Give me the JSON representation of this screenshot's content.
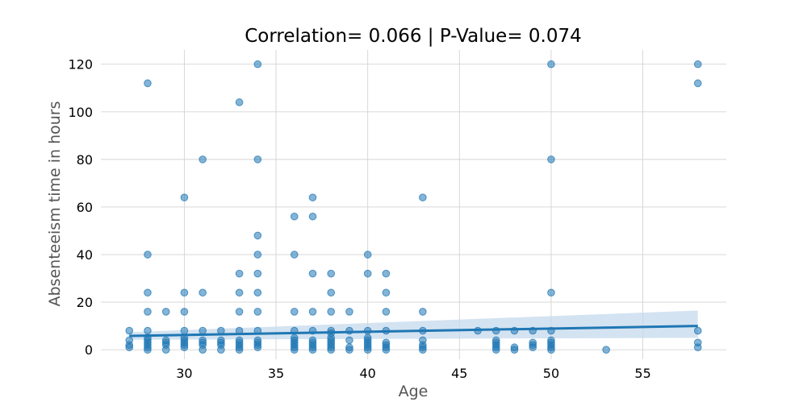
{
  "chart_data": {
    "type": "scatter",
    "title": "Correlation= 0.066 | P-Value= 0.074",
    "xlabel": "Age",
    "ylabel": "Absenteeism time in hours",
    "xlim": [
      25.45,
      59.55
    ],
    "ylim": [
      -4,
      126
    ],
    "x_ticks": [
      30,
      35,
      40,
      45,
      50,
      55
    ],
    "y_ticks": [
      0,
      20,
      40,
      60,
      80,
      100,
      120
    ],
    "grid": true,
    "colors": {
      "points": "#1f77b4",
      "regression_line": "#1f77b4",
      "confidence_band": "#c6d9ec",
      "grid": "#d3d3d3"
    },
    "points": [
      {
        "x": 27,
        "y": 8
      },
      {
        "x": 27,
        "y": 4
      },
      {
        "x": 27,
        "y": 2
      },
      {
        "x": 27,
        "y": 1
      },
      {
        "x": 28,
        "y": 112
      },
      {
        "x": 28,
        "y": 40
      },
      {
        "x": 28,
        "y": 24
      },
      {
        "x": 28,
        "y": 16
      },
      {
        "x": 28,
        "y": 8
      },
      {
        "x": 28,
        "y": 5
      },
      {
        "x": 28,
        "y": 4
      },
      {
        "x": 28,
        "y": 3
      },
      {
        "x": 28,
        "y": 2
      },
      {
        "x": 28,
        "y": 1
      },
      {
        "x": 28,
        "y": 0
      },
      {
        "x": 29,
        "y": 16
      },
      {
        "x": 29,
        "y": 4
      },
      {
        "x": 29,
        "y": 3
      },
      {
        "x": 29,
        "y": 2
      },
      {
        "x": 29,
        "y": 0
      },
      {
        "x": 30,
        "y": 64
      },
      {
        "x": 30,
        "y": 24
      },
      {
        "x": 30,
        "y": 16
      },
      {
        "x": 30,
        "y": 8
      },
      {
        "x": 30,
        "y": 5
      },
      {
        "x": 30,
        "y": 4
      },
      {
        "x": 30,
        "y": 3
      },
      {
        "x": 30,
        "y": 2
      },
      {
        "x": 30,
        "y": 1
      },
      {
        "x": 31,
        "y": 80
      },
      {
        "x": 31,
        "y": 24
      },
      {
        "x": 31,
        "y": 8
      },
      {
        "x": 31,
        "y": 4
      },
      {
        "x": 31,
        "y": 3
      },
      {
        "x": 31,
        "y": 2
      },
      {
        "x": 31,
        "y": 0
      },
      {
        "x": 32,
        "y": 8
      },
      {
        "x": 32,
        "y": 4
      },
      {
        "x": 32,
        "y": 3
      },
      {
        "x": 32,
        "y": 2
      },
      {
        "x": 32,
        "y": 0
      },
      {
        "x": 33,
        "y": 104
      },
      {
        "x": 33,
        "y": 32
      },
      {
        "x": 33,
        "y": 24
      },
      {
        "x": 33,
        "y": 16
      },
      {
        "x": 33,
        "y": 8
      },
      {
        "x": 33,
        "y": 4
      },
      {
        "x": 33,
        "y": 3
      },
      {
        "x": 33,
        "y": 2
      },
      {
        "x": 33,
        "y": 1
      },
      {
        "x": 33,
        "y": 0
      },
      {
        "x": 34,
        "y": 120
      },
      {
        "x": 34,
        "y": 80
      },
      {
        "x": 34,
        "y": 48
      },
      {
        "x": 34,
        "y": 40
      },
      {
        "x": 34,
        "y": 32
      },
      {
        "x": 34,
        "y": 24
      },
      {
        "x": 34,
        "y": 16
      },
      {
        "x": 34,
        "y": 8
      },
      {
        "x": 34,
        "y": 4
      },
      {
        "x": 34,
        "y": 3
      },
      {
        "x": 34,
        "y": 2
      },
      {
        "x": 34,
        "y": 1
      },
      {
        "x": 36,
        "y": 56
      },
      {
        "x": 36,
        "y": 40
      },
      {
        "x": 36,
        "y": 16
      },
      {
        "x": 36,
        "y": 8
      },
      {
        "x": 36,
        "y": 5
      },
      {
        "x": 36,
        "y": 4
      },
      {
        "x": 36,
        "y": 3
      },
      {
        "x": 36,
        "y": 2
      },
      {
        "x": 36,
        "y": 1
      },
      {
        "x": 36,
        "y": 0
      },
      {
        "x": 37,
        "y": 64
      },
      {
        "x": 37,
        "y": 56
      },
      {
        "x": 37,
        "y": 32
      },
      {
        "x": 37,
        "y": 16
      },
      {
        "x": 37,
        "y": 8
      },
      {
        "x": 37,
        "y": 4
      },
      {
        "x": 37,
        "y": 3
      },
      {
        "x": 37,
        "y": 2
      },
      {
        "x": 37,
        "y": 1
      },
      {
        "x": 37,
        "y": 0
      },
      {
        "x": 38,
        "y": 32
      },
      {
        "x": 38,
        "y": 24
      },
      {
        "x": 38,
        "y": 16
      },
      {
        "x": 38,
        "y": 8
      },
      {
        "x": 38,
        "y": 7
      },
      {
        "x": 38,
        "y": 5
      },
      {
        "x": 38,
        "y": 4
      },
      {
        "x": 38,
        "y": 3
      },
      {
        "x": 38,
        "y": 2
      },
      {
        "x": 38,
        "y": 1
      },
      {
        "x": 38,
        "y": 0
      },
      {
        "x": 39,
        "y": 16
      },
      {
        "x": 39,
        "y": 8
      },
      {
        "x": 39,
        "y": 4
      },
      {
        "x": 39,
        "y": 1
      },
      {
        "x": 39,
        "y": 0
      },
      {
        "x": 40,
        "y": 40
      },
      {
        "x": 40,
        "y": 32
      },
      {
        "x": 40,
        "y": 8
      },
      {
        "x": 40,
        "y": 5
      },
      {
        "x": 40,
        "y": 4
      },
      {
        "x": 40,
        "y": 3
      },
      {
        "x": 40,
        "y": 2
      },
      {
        "x": 40,
        "y": 1
      },
      {
        "x": 40,
        "y": 0
      },
      {
        "x": 41,
        "y": 32
      },
      {
        "x": 41,
        "y": 24
      },
      {
        "x": 41,
        "y": 16
      },
      {
        "x": 41,
        "y": 8
      },
      {
        "x": 41,
        "y": 3
      },
      {
        "x": 41,
        "y": 2
      },
      {
        "x": 41,
        "y": 1
      },
      {
        "x": 41,
        "y": 0
      },
      {
        "x": 43,
        "y": 64
      },
      {
        "x": 43,
        "y": 16
      },
      {
        "x": 43,
        "y": 8
      },
      {
        "x": 43,
        "y": 4
      },
      {
        "x": 43,
        "y": 2
      },
      {
        "x": 43,
        "y": 1
      },
      {
        "x": 43,
        "y": 0
      },
      {
        "x": 46,
        "y": 8
      },
      {
        "x": 47,
        "y": 8
      },
      {
        "x": 47,
        "y": 4
      },
      {
        "x": 47,
        "y": 3
      },
      {
        "x": 47,
        "y": 2
      },
      {
        "x": 47,
        "y": 1
      },
      {
        "x": 47,
        "y": 0
      },
      {
        "x": 48,
        "y": 8
      },
      {
        "x": 48,
        "y": 1
      },
      {
        "x": 48,
        "y": 0
      },
      {
        "x": 49,
        "y": 8
      },
      {
        "x": 49,
        "y": 3
      },
      {
        "x": 49,
        "y": 2
      },
      {
        "x": 49,
        "y": 1
      },
      {
        "x": 50,
        "y": 120
      },
      {
        "x": 50,
        "y": 80
      },
      {
        "x": 50,
        "y": 24
      },
      {
        "x": 50,
        "y": 8
      },
      {
        "x": 50,
        "y": 4
      },
      {
        "x": 50,
        "y": 3
      },
      {
        "x": 50,
        "y": 2
      },
      {
        "x": 50,
        "y": 1
      },
      {
        "x": 50,
        "y": 0
      },
      {
        "x": 53,
        "y": 0
      },
      {
        "x": 58,
        "y": 120
      },
      {
        "x": 58,
        "y": 112
      },
      {
        "x": 58,
        "y": 8
      },
      {
        "x": 58,
        "y": 3
      },
      {
        "x": 58,
        "y": 1
      }
    ],
    "regression": {
      "x": [
        27,
        58
      ],
      "y": [
        5.8,
        10.0
      ],
      "ci_lower": [
        4.2,
        5.0
      ],
      "ci_upper": [
        7.4,
        16.5
      ]
    }
  }
}
